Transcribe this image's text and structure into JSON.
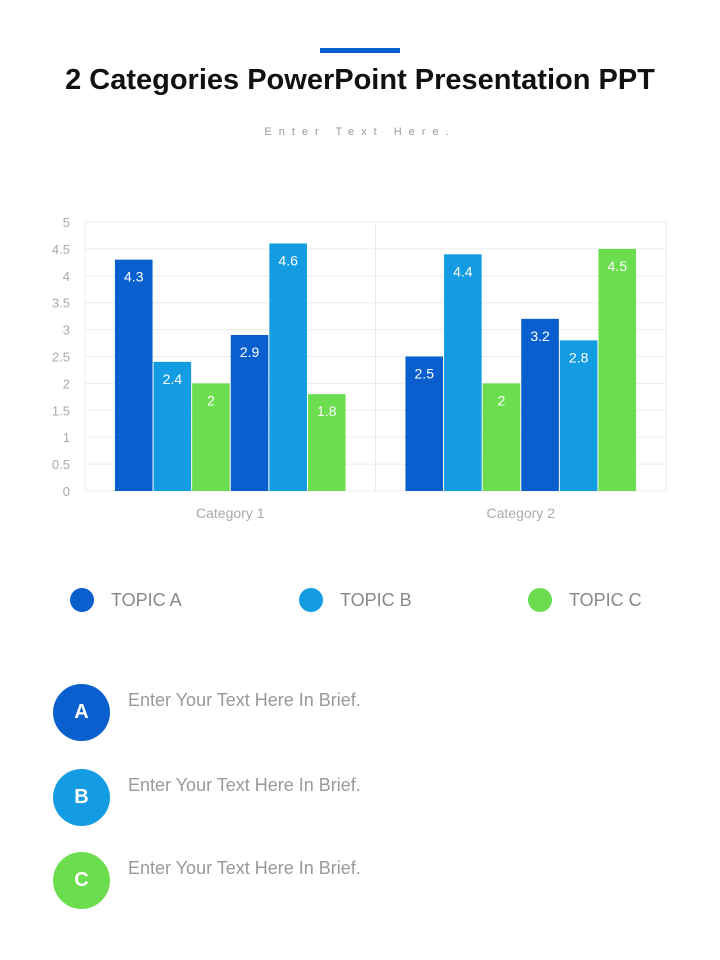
{
  "header": {
    "title": "2 Categories PowerPoint Presentation PPT",
    "subtitle": "Enter Text Here."
  },
  "colors": {
    "accent": "#0a5fcf",
    "topic_a": "#0a5fcf",
    "topic_b": "#149ce3",
    "topic_c": "#6cdd4e"
  },
  "chart_data": {
    "type": "bar",
    "categories": [
      "Category 1",
      "Category 2"
    ],
    "series": [
      {
        "color": "#0a5fcf",
        "values": [
          4.3,
          2.5
        ]
      },
      {
        "color": "#149ce3",
        "values": [
          2.4,
          4.4
        ]
      },
      {
        "color": "#6cdd4e",
        "values": [
          2,
          2
        ]
      },
      {
        "color": "#0a5fcf",
        "values": [
          2.9,
          3.2
        ]
      },
      {
        "color": "#149ce3",
        "values": [
          4.6,
          2.8
        ]
      },
      {
        "color": "#6cdd4e",
        "values": [
          1.8,
          4.5
        ]
      }
    ],
    "ylim": [
      0,
      5
    ],
    "yticks": [
      "0",
      "0.5",
      "1",
      "1.5",
      "2",
      "2.5",
      "3",
      "3.5",
      "4",
      "4.5",
      "5"
    ],
    "grid": true,
    "data_labels": true,
    "legend": {
      "placement": "bottom",
      "entries": [
        {
          "label": "TOPIC A",
          "color": "#0a5fcf"
        },
        {
          "label": "TOPIC B",
          "color": "#149ce3"
        },
        {
          "label": "TOPIC C",
          "color": "#6cdd4e"
        }
      ]
    }
  },
  "items": [
    {
      "letter": "A",
      "text": "Enter Your Text Here In Brief.",
      "color": "#0a5fcf"
    },
    {
      "letter": "B",
      "text": "Enter Your Text Here In Brief.",
      "color": "#149ce3"
    },
    {
      "letter": "C",
      "text": "Enter Your Text Here In Brief.",
      "color": "#6cdd4e"
    }
  ]
}
